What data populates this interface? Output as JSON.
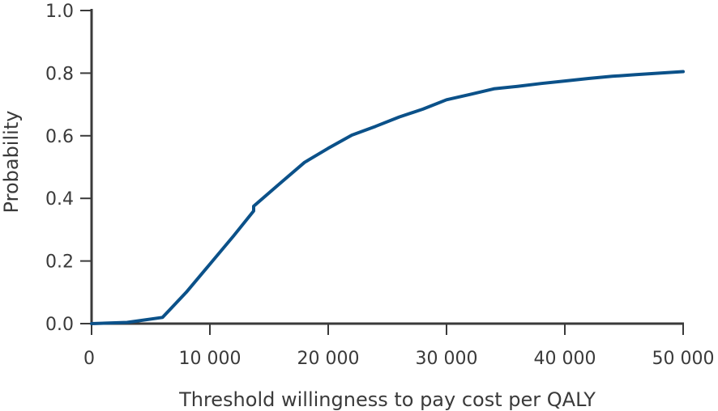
{
  "chart_data": {
    "type": "line",
    "title": "",
    "xlabel": "Threshold willingness to pay cost per QALY",
    "ylabel": "Probability",
    "xlim": [
      0,
      50000
    ],
    "ylim": [
      0,
      1.0
    ],
    "grid": false,
    "x_ticks": [
      0,
      10000,
      20000,
      30000,
      40000,
      50000
    ],
    "x_tick_labels": [
      "0",
      "10 000",
      "20 000",
      "30 000",
      "40 000",
      "50 000"
    ],
    "y_ticks": [
      0,
      0.2,
      0.4,
      0.6,
      0.8,
      1.0
    ],
    "y_tick_labels": [
      "0.0",
      "0.2",
      "0.4",
      "0.6",
      "0.8",
      "1.0"
    ],
    "series": [
      {
        "color": "#0b5189",
        "x": [
          0,
          3000,
          6000,
          8000,
          10000,
          12000,
          13700,
          13700,
          16000,
          18000,
          20000,
          22000,
          24000,
          26000,
          28000,
          30000,
          32000,
          34000,
          36000,
          38000,
          40000,
          42000,
          44000,
          46000,
          48000,
          50000
        ],
        "y": [
          0.0,
          0.004,
          0.02,
          0.1,
          0.19,
          0.28,
          0.36,
          0.375,
          0.45,
          0.515,
          0.56,
          0.602,
          0.63,
          0.66,
          0.685,
          0.715,
          0.732,
          0.75,
          0.758,
          0.767,
          0.775,
          0.783,
          0.79,
          0.795,
          0.8,
          0.805
        ]
      }
    ]
  }
}
